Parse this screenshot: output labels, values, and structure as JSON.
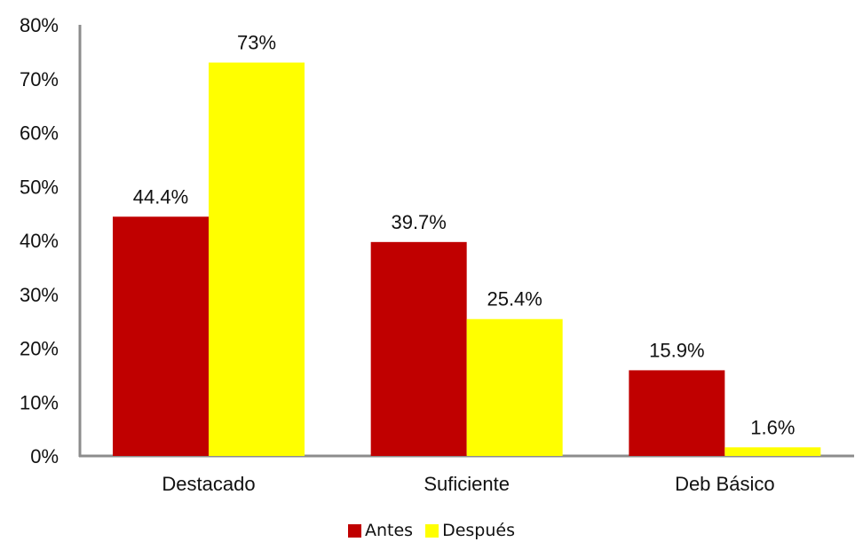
{
  "chart_data": {
    "type": "bar",
    "categories": [
      "Destacado",
      "Suficiente",
      "Deb Básico"
    ],
    "series": [
      {
        "name": "Antes",
        "color": "#C00000",
        "values": [
          44.4,
          39.7,
          15.9
        ],
        "labels": [
          "44.4%",
          "39.7%",
          "15.9%"
        ]
      },
      {
        "name": "Después",
        "color": "#FFFF00",
        "values": [
          73,
          25.4,
          1.6
        ],
        "labels": [
          "73%",
          "25.4%",
          "1.6%"
        ]
      }
    ],
    "ylim": [
      0,
      80
    ],
    "yticks": [
      "0%",
      "10%",
      "20%",
      "30%",
      "40%",
      "50%",
      "60%",
      "70%",
      "80%"
    ],
    "grid": false,
    "legend_position": "bottom"
  }
}
